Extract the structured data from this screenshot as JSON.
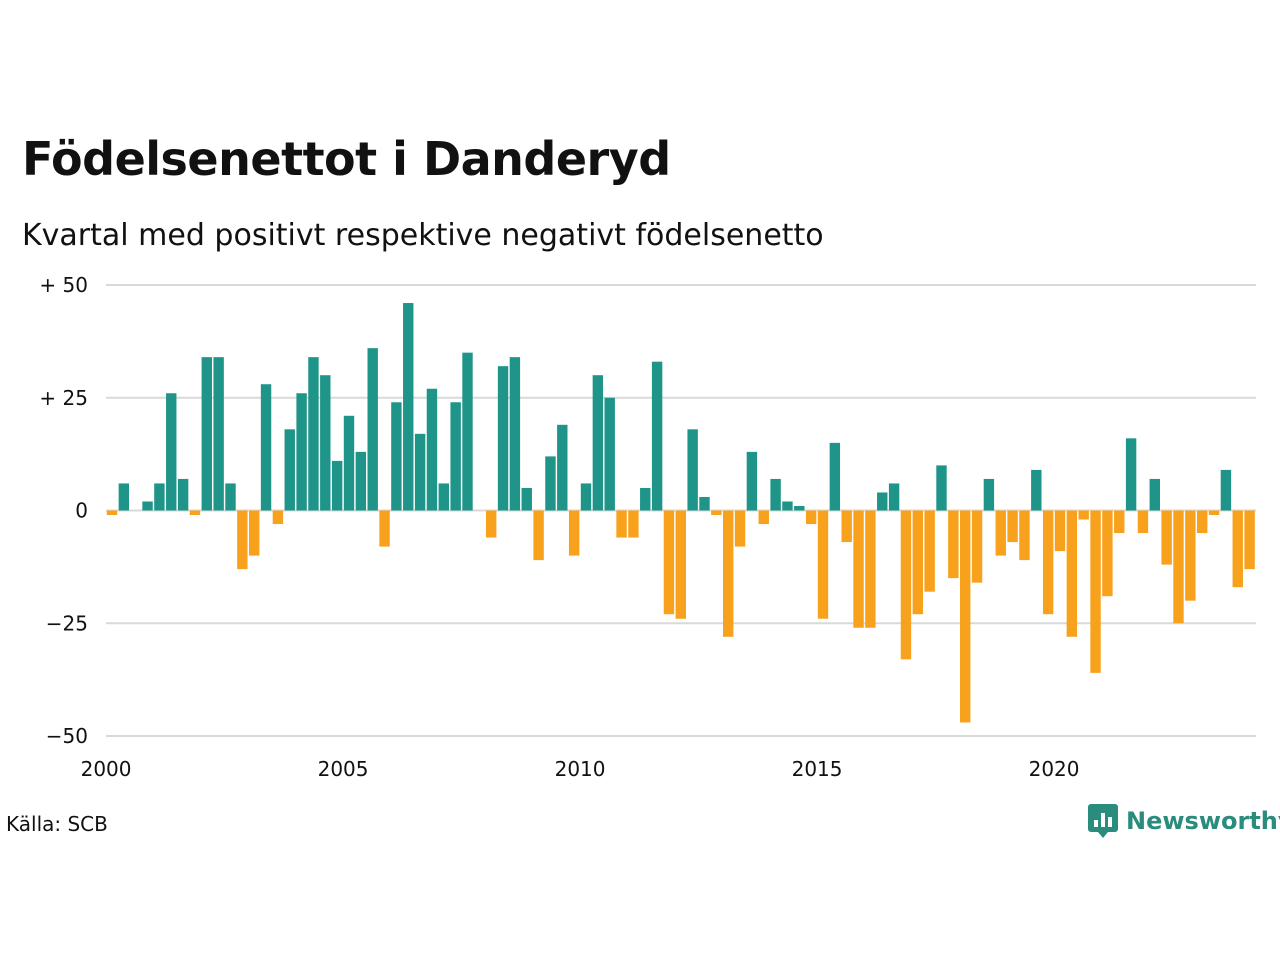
{
  "title": "Födelsenettot i Danderyd",
  "subtitle": "Kvartal med positivt respektive negativt födelsenetto",
  "source": "Källa: SCB",
  "logo_text": "Newsworthy",
  "colors": {
    "positive": "#1f9488",
    "negative": "#f8a11c",
    "grid": "#d9d9d9",
    "logo": "#2a8c7c"
  },
  "chart_data": {
    "type": "bar",
    "title": "Födelsenettot i Danderyd",
    "subtitle": "Kvartal med positivt respektive negativt födelsenetto",
    "x_start": "2000 Q1",
    "xticks": [
      {
        "value": 2000,
        "label": "2000"
      },
      {
        "value": 2005,
        "label": "2005"
      },
      {
        "value": 2010,
        "label": "2010"
      },
      {
        "value": 2015,
        "label": "2015"
      },
      {
        "value": 2020,
        "label": "2020"
      }
    ],
    "yticks": [
      {
        "value": 50,
        "label": "+ 50"
      },
      {
        "value": 25,
        "label": "+ 25"
      },
      {
        "value": 0,
        "label": "0"
      },
      {
        "value": -25,
        "label": "−25"
      },
      {
        "value": -50,
        "label": "−50"
      }
    ],
    "ylim": [
      -50,
      50
    ],
    "values": [
      -1,
      6,
      0,
      2,
      6,
      26,
      7,
      -1,
      34,
      34,
      6,
      -13,
      -10,
      28,
      -3,
      18,
      26,
      34,
      30,
      11,
      21,
      13,
      36,
      -8,
      24,
      46,
      17,
      27,
      6,
      24,
      35,
      0,
      -6,
      32,
      34,
      5,
      -11,
      12,
      19,
      -10,
      6,
      30,
      25,
      -6,
      -6,
      5,
      33,
      -23,
      -24,
      18,
      3,
      -1,
      -28,
      -8,
      13,
      -3,
      7,
      2,
      1,
      -3,
      -24,
      15,
      -7,
      -26,
      -26,
      4,
      6,
      -33,
      -23,
      -18,
      10,
      -15,
      -47,
      -16,
      7,
      -10,
      -7,
      -11,
      9,
      -23,
      -9,
      -28,
      -2,
      -36,
      -19,
      -5,
      16,
      -5,
      7,
      -12,
      -25,
      -20,
      -5,
      -1,
      9,
      -17,
      -13
    ]
  }
}
